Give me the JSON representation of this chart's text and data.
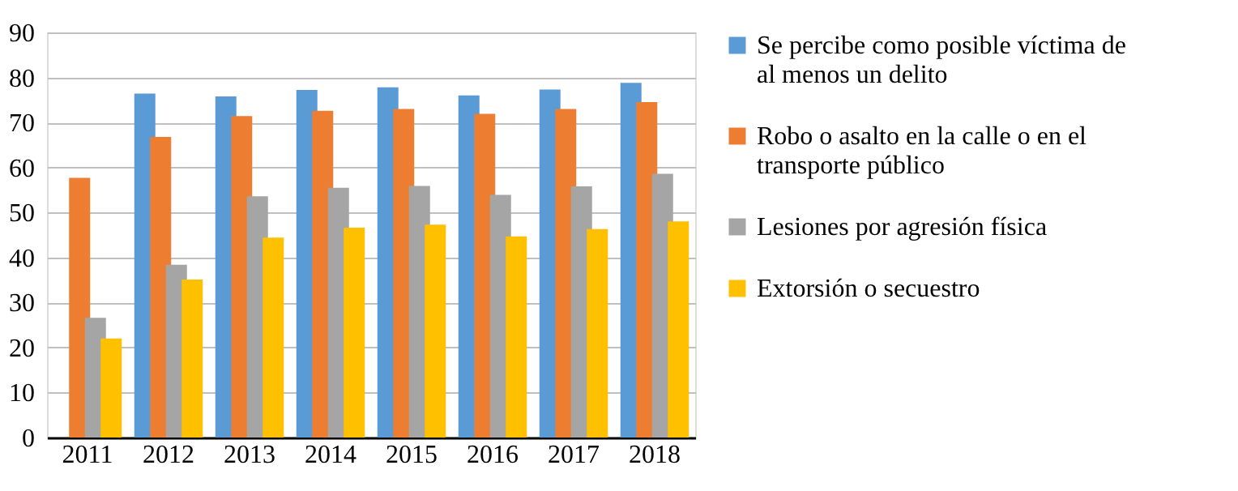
{
  "chart_data": {
    "type": "bar",
    "categories": [
      "2011",
      "2012",
      "2013",
      "2014",
      "2015",
      "2016",
      "2017",
      "2018"
    ],
    "series": [
      {
        "name": "Se percibe como posible víctima de al menos un delito",
        "color": "#5b9bd5",
        "values": [
          null,
          76.4,
          75.8,
          77.2,
          77.8,
          76.0,
          77.3,
          78.8
        ]
      },
      {
        "name": "Robo o asalto en la calle o en el transporte público",
        "color": "#ed7d31",
        "values": [
          57.7,
          66.8,
          71.4,
          72.6,
          73.0,
          71.9,
          73.0,
          74.5
        ]
      },
      {
        "name": "Lesiones por agresión física",
        "color": "#a5a5a5",
        "values": [
          26.6,
          38.4,
          53.6,
          55.5,
          55.9,
          53.9,
          55.8,
          58.6
        ]
      },
      {
        "name": "Extorsión o secuestro",
        "color": "#ffc000",
        "values": [
          22.0,
          35.1,
          44.4,
          46.6,
          47.3,
          44.7,
          46.3,
          48.0
        ]
      }
    ],
    "ylim": [
      0,
      90
    ],
    "yticks": [
      0,
      10,
      20,
      30,
      40,
      50,
      60,
      70,
      80,
      90
    ],
    "grid": "y",
    "legend": "right"
  }
}
